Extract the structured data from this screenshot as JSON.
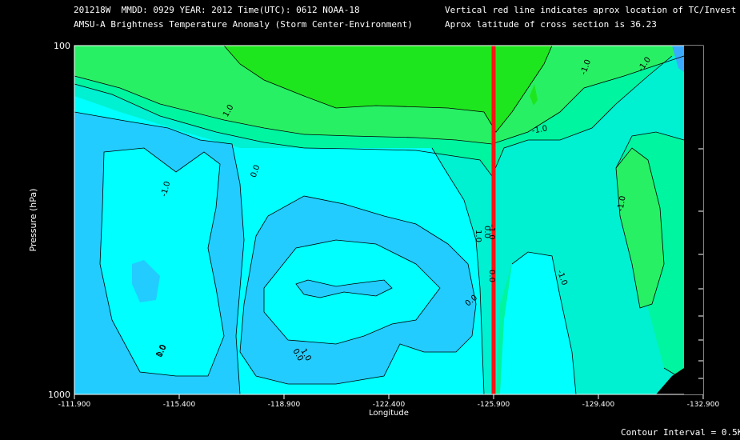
{
  "header": {
    "line1_left": "201218W  MMDD: 0929 YEAR: 2012 Time(UTC): 0612 NOAA-18",
    "line2_left": "AMSU-A Brightness Temperature Anomaly (Storm Center-Environment)",
    "line1_right": "Vertical red line indicates aprox location of TC/Invest",
    "line2_right": "Aprox latitude of cross section is 36.23"
  },
  "footer": {
    "contour_interval": "Contour Interval = 0.5K"
  },
  "chart_data": {
    "type": "contour",
    "xlabel": "Longitude",
    "ylabel": "Pressure (hPa)",
    "x_ticks": [
      "-111.900",
      "-115.400",
      "-118.900",
      "-122.400",
      "-125.900",
      "-129.400",
      "-132.900"
    ],
    "x_tick_values": [
      -111.9,
      -115.4,
      -118.9,
      -122.4,
      -125.9,
      -129.4,
      -132.9
    ],
    "xlim": [
      -111.9,
      -132.9
    ],
    "y_ticks": [
      "100",
      "1000"
    ],
    "ylim": [
      1000,
      100
    ],
    "y_scale": "log",
    "tc_longitude": -125.9,
    "contour_labels": [
      "1.0",
      "0.0",
      "-1.0",
      "0.0",
      "-1.0",
      "-1.0",
      "-1.0",
      "-1.0",
      "-1.0",
      "1.0",
      "0.0",
      "0.0",
      "-1.0",
      "1.0",
      "0.0",
      "1.0",
      "0.0"
    ],
    "colors": {
      "level_high": "#1ee61e",
      "level_mid_high": "#28f064",
      "level_mid": "#00f5a0",
      "level_zero": "#00f0d2",
      "level_low": "#00ffff",
      "level_lower": "#22ccff",
      "level_lowest": "#3aaaff",
      "tc_line": "#ff1414"
    }
  }
}
